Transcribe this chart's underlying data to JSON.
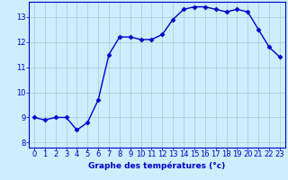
{
  "x": [
    0,
    1,
    2,
    3,
    4,
    5,
    6,
    7,
    8,
    9,
    10,
    11,
    12,
    13,
    14,
    15,
    16,
    17,
    18,
    19,
    20,
    21,
    22,
    23
  ],
  "y": [
    9.0,
    8.9,
    9.0,
    9.0,
    8.5,
    8.8,
    9.7,
    11.5,
    12.2,
    12.2,
    12.1,
    12.1,
    12.3,
    12.9,
    13.3,
    13.4,
    13.4,
    13.3,
    13.2,
    13.3,
    13.2,
    12.5,
    11.8,
    11.4
  ],
  "line_color": "#0000cc",
  "marker": "D",
  "background_color": "#cceeff",
  "plot_bg_color": "#cceeff",
  "grid_color": "#aacccc",
  "axis_color": "#0000cc",
  "xlabel": "Graphe des températures (°c)",
  "xlim": [
    -0.5,
    23.5
  ],
  "ylim": [
    7.8,
    13.6
  ],
  "yticks": [
    8,
    9,
    10,
    11,
    12,
    13
  ],
  "xticks": [
    0,
    1,
    2,
    3,
    4,
    5,
    6,
    7,
    8,
    9,
    10,
    11,
    12,
    13,
    14,
    15,
    16,
    17,
    18,
    19,
    20,
    21,
    22,
    23
  ],
  "xlabel_fontsize": 6.5,
  "tick_fontsize": 6,
  "line_width": 1.0,
  "marker_size": 2.5
}
